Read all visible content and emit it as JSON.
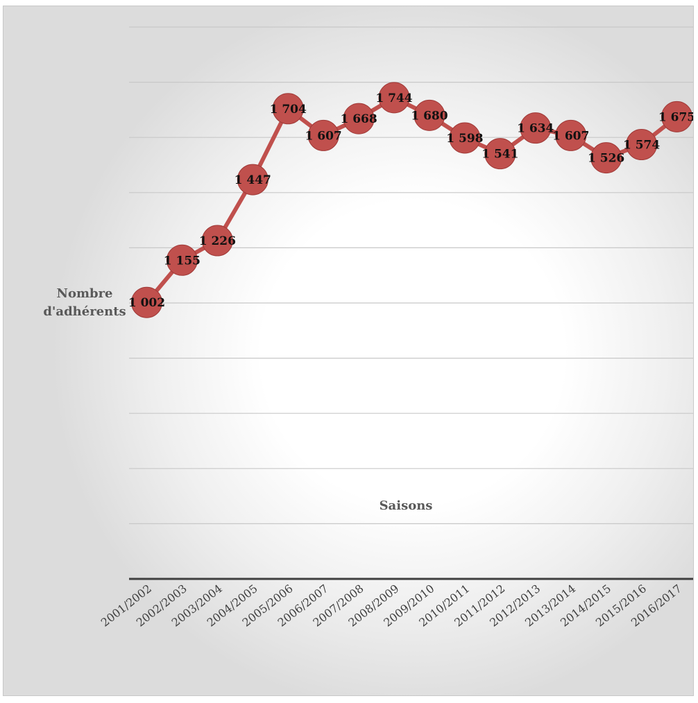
{
  "chart_data": {
    "type": "line",
    "xlabel": "Saisons",
    "ylabel": "Nombre d'adhérents",
    "categories": [
      "2001/2002",
      "2002/2003",
      "2003/2004",
      "2004/2005",
      "2005/2006",
      "2006/2007",
      "2007/2008",
      "2008/2009",
      "2009/2010",
      "2010/2011",
      "2011/2012",
      "2012/2013",
      "2013/2014",
      "2014/2015",
      "2015/2016",
      "2016/2017"
    ],
    "series": [
      {
        "values": [
          1002,
          1155,
          1226,
          1447,
          1704,
          1607,
          1668,
          1744,
          1680,
          1598,
          1541,
          1634,
          1607,
          1526,
          1574,
          1675
        ],
        "labels": [
          "1 002",
          "1 155",
          "1 226",
          "1 447",
          "1 704",
          "1 607",
          "1 668",
          "1 744",
          "1 680",
          "1 598",
          "1 541",
          "1 634",
          "1 607",
          "1 526",
          "1 574",
          "1 675"
        ]
      }
    ],
    "ylim": [
      0,
      2000
    ],
    "ytick_step": 200,
    "grid": true,
    "show_y_tick_labels": false,
    "colors": {
      "line": "#c0504d",
      "marker": "#c0504d",
      "marker_edge": "#a03a38",
      "label": "#111111",
      "grid": "#c8c8c8",
      "axis": "#3f3f3f"
    }
  }
}
